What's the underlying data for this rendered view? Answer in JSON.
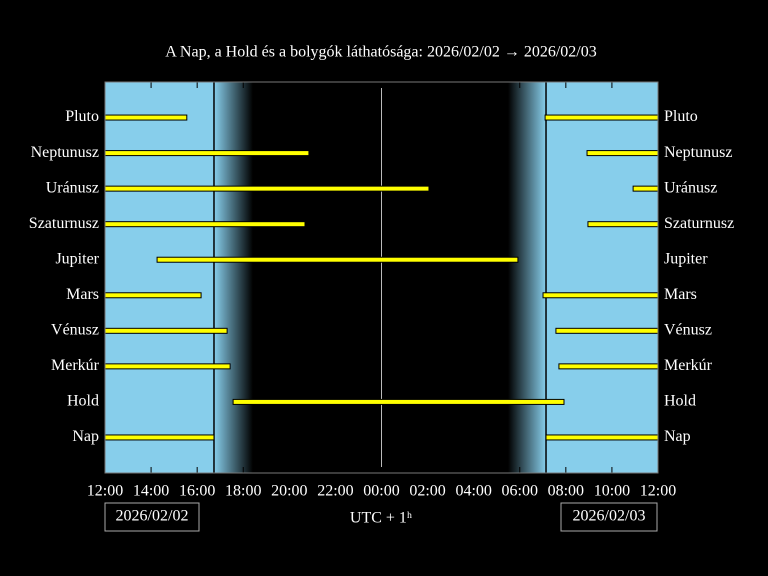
{
  "chart_data": {
    "type": "visibility",
    "title": "A Nap, a Hold és a bolygók láthatósága: 2026/02/02 → 2026/02/03",
    "xlabel": "UTC + 1ʰ",
    "start_date": "2026/02/02",
    "end_date": "2026/02/03",
    "categories": [
      "Pluto",
      "Neptunusz",
      "Uránusz",
      "Szaturnusz",
      "Jupiter",
      "Mars",
      "Vénusz",
      "Merkúr",
      "Hold",
      "Nap"
    ],
    "intervals": [
      [
        [
          0,
          3.55
        ],
        [
          19.1,
          24
        ]
      ],
      [
        [
          0,
          8.85
        ],
        [
          20.92,
          24
        ]
      ],
      [
        [
          0,
          14.06
        ],
        [
          22.92,
          24
        ]
      ],
      [
        [
          0,
          8.68
        ],
        [
          20.96,
          24
        ]
      ],
      [
        [
          2.26,
          17.92
        ]
      ],
      [
        [
          0,
          4.17
        ],
        [
          19.01,
          24
        ]
      ],
      [
        [
          0,
          5.3
        ],
        [
          19.57,
          24
        ]
      ],
      [
        [
          0,
          5.43
        ],
        [
          19.7,
          24
        ]
      ],
      [
        [
          5.56,
          19.92
        ]
      ],
      [
        [
          0,
          4.73
        ],
        [
          19.14,
          24
        ]
      ]
    ],
    "night": [
      6.42,
      17.49
    ],
    "color": "#ffff00",
    "day_color": "#87ceeb",
    "xlim": [
      0,
      24
    ],
    "xticks": [
      {
        "value": 0,
        "label": "12:00"
      },
      {
        "value": 2,
        "label": "14:00"
      },
      {
        "value": 4,
        "label": "16:00"
      },
      {
        "value": 6,
        "label": "18:00"
      },
      {
        "value": 8,
        "label": "20:00"
      },
      {
        "value": 10,
        "label": "22:00"
      },
      {
        "value": 12,
        "label": "00:00"
      },
      {
        "value": 14,
        "label": "02:00"
      },
      {
        "value": 16,
        "label": "04:00"
      },
      {
        "value": 18,
        "label": "06:00"
      },
      {
        "value": 20,
        "label": "08:00"
      },
      {
        "value": 22,
        "label": "10:00"
      },
      {
        "value": 24,
        "label": "12:00"
      }
    ],
    "midnight": 12
  }
}
